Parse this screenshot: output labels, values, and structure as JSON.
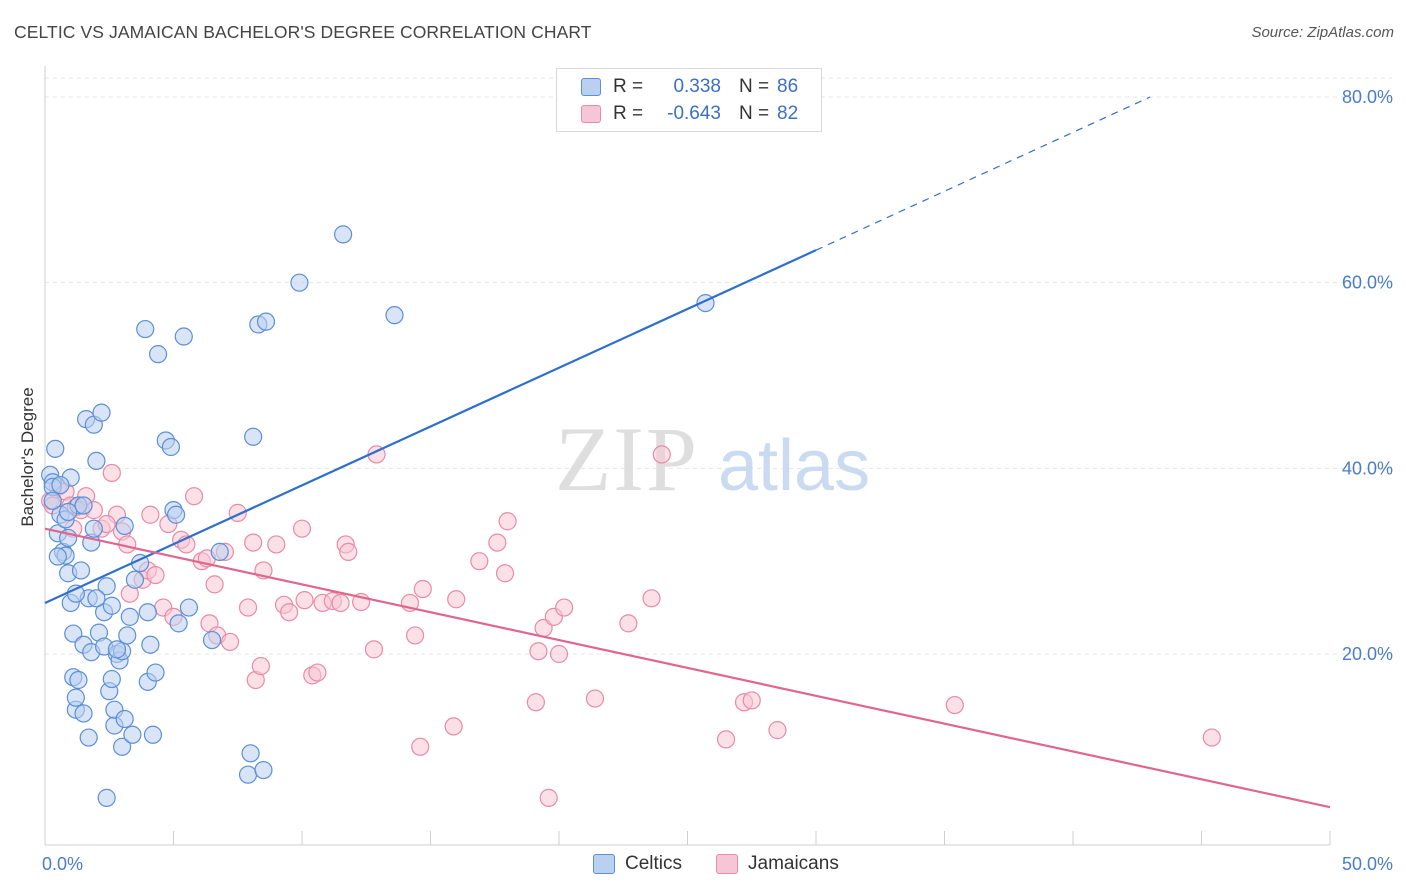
{
  "header": {
    "title": "CELTIC VS JAMAICAN BACHELOR'S DEGREE CORRELATION CHART",
    "source": "Source: ZipAtlas.com"
  },
  "watermark": {
    "zip": "ZIP",
    "atlas": "atlas"
  },
  "legend": {
    "rows": [
      {
        "r_label": "R =",
        "r_value": "0.338",
        "n_label": "N =",
        "n_value": "86",
        "color": "#5b8fd6"
      },
      {
        "r_label": "R =",
        "r_value": "-0.643",
        "n_label": "N =",
        "n_value": "82",
        "color": "#e88aa8"
      }
    ]
  },
  "bottom_legend": {
    "celtics": "Celtics",
    "jamaicans": "Jamaicans"
  },
  "colors": {
    "blue": "#5b8fd6",
    "blue_fill": "#b9d0f0",
    "pink": "#e88aa8",
    "pink_fill": "#f7c6d6",
    "blue_line": "#2f6fcc",
    "pink_line": "#e0668f"
  },
  "chart_data": {
    "type": "scatter",
    "title": "CELTIC VS JAMAICAN BACHELOR'S DEGREE CORRELATION CHART",
    "xlabel": "",
    "ylabel": "Bachelor's Degree",
    "xlim": [
      0,
      50
    ],
    "ylim": [
      0,
      85
    ],
    "x_ticks": [
      "0.0%",
      "50.0%"
    ],
    "y_ticks": [
      {
        "value": 20,
        "label": "20.0%"
      },
      {
        "value": 40,
        "label": "40.0%"
      },
      {
        "value": 60,
        "label": "60.0%"
      },
      {
        "value": 80,
        "label": "80.0%"
      }
    ],
    "grid": true,
    "series": [
      {
        "name": "Celtics",
        "trend": {
          "x": [
            0,
            30
          ],
          "y": [
            25.5,
            63.5
          ],
          "dashed_to": [
            43,
            80
          ]
        },
        "points": [
          [
            0.2,
            39.3
          ],
          [
            0.3,
            38.5
          ],
          [
            0.3,
            38.0
          ],
          [
            0.4,
            42.1
          ],
          [
            0.5,
            33.0
          ],
          [
            0.6,
            35.0
          ],
          [
            0.7,
            31.0
          ],
          [
            0.8,
            30.6
          ],
          [
            0.8,
            34.5
          ],
          [
            0.9,
            32.5
          ],
          [
            0.9,
            28.7
          ],
          [
            1.0,
            25.5
          ],
          [
            1.0,
            39.0
          ],
          [
            1.1,
            22.2
          ],
          [
            1.1,
            17.5
          ],
          [
            1.2,
            14.0
          ],
          [
            1.2,
            15.3
          ],
          [
            1.3,
            17.2
          ],
          [
            1.3,
            36.0
          ],
          [
            1.4,
            29.0
          ],
          [
            1.5,
            21.0
          ],
          [
            1.5,
            13.6
          ],
          [
            1.6,
            45.3
          ],
          [
            1.7,
            26.0
          ],
          [
            1.7,
            11.0
          ],
          [
            1.8,
            20.2
          ],
          [
            1.8,
            32.0
          ],
          [
            1.9,
            33.5
          ],
          [
            1.9,
            44.7
          ],
          [
            2.0,
            40.8
          ],
          [
            2.1,
            22.3
          ],
          [
            2.2,
            46.0
          ],
          [
            2.3,
            20.8
          ],
          [
            2.3,
            24.5
          ],
          [
            2.4,
            4.5
          ],
          [
            2.4,
            27.3
          ],
          [
            2.5,
            16.0
          ],
          [
            2.6,
            25.2
          ],
          [
            2.6,
            17.3
          ],
          [
            2.7,
            12.3
          ],
          [
            2.7,
            14.0
          ],
          [
            2.8,
            20.0
          ],
          [
            2.9,
            19.3
          ],
          [
            3.0,
            20.3
          ],
          [
            3.0,
            10.0
          ],
          [
            3.1,
            13.0
          ],
          [
            3.1,
            33.8
          ],
          [
            3.2,
            22.0
          ],
          [
            3.3,
            24.0
          ],
          [
            3.4,
            11.3
          ],
          [
            3.7,
            29.8
          ],
          [
            3.9,
            55.0
          ],
          [
            4.0,
            17.0
          ],
          [
            4.0,
            24.5
          ],
          [
            4.1,
            21.0
          ],
          [
            4.2,
            11.3
          ],
          [
            4.3,
            18.0
          ],
          [
            4.4,
            52.3
          ],
          [
            4.7,
            43.0
          ],
          [
            4.9,
            42.3
          ],
          [
            5.0,
            35.5
          ],
          [
            5.1,
            35.0
          ],
          [
            5.2,
            23.3
          ],
          [
            5.4,
            54.2
          ],
          [
            5.6,
            25.0
          ],
          [
            6.5,
            21.5
          ],
          [
            6.8,
            31.0
          ],
          [
            7.9,
            7.0
          ],
          [
            8.0,
            9.3
          ],
          [
            8.1,
            43.4
          ],
          [
            8.3,
            55.5
          ],
          [
            8.6,
            55.8
          ],
          [
            8.5,
            7.5
          ],
          [
            9.9,
            60.0
          ],
          [
            11.6,
            65.2
          ],
          [
            13.6,
            56.5
          ],
          [
            25.7,
            57.8
          ],
          [
            0.5,
            30.5
          ],
          [
            1.2,
            26.5
          ],
          [
            2.0,
            26.0
          ],
          [
            0.3,
            36.5
          ],
          [
            0.6,
            38.2
          ],
          [
            1.5,
            36.0
          ],
          [
            0.9,
            35.3
          ],
          [
            2.8,
            20.5
          ],
          [
            3.5,
            28.0
          ]
        ]
      },
      {
        "name": "Jamaicans",
        "trend": {
          "x": [
            0,
            50
          ],
          "y": [
            33.5,
            3.5
          ]
        },
        "points": [
          [
            0.2,
            36.5
          ],
          [
            0.5,
            38.0
          ],
          [
            0.8,
            37.5
          ],
          [
            1.0,
            36.0
          ],
          [
            1.2,
            35.8
          ],
          [
            1.4,
            35.5
          ],
          [
            1.6,
            37.0
          ],
          [
            1.9,
            35.5
          ],
          [
            2.2,
            33.5
          ],
          [
            2.6,
            39.5
          ],
          [
            2.8,
            35.0
          ],
          [
            3.0,
            33.2
          ],
          [
            3.2,
            31.8
          ],
          [
            3.3,
            26.5
          ],
          [
            3.8,
            28.0
          ],
          [
            4.0,
            29.0
          ],
          [
            4.1,
            35.0
          ],
          [
            4.3,
            28.5
          ],
          [
            4.6,
            25.0
          ],
          [
            4.8,
            34.0
          ],
          [
            5.0,
            24.0
          ],
          [
            5.3,
            32.3
          ],
          [
            5.5,
            31.8
          ],
          [
            5.8,
            37.0
          ],
          [
            6.1,
            30.0
          ],
          [
            6.3,
            30.3
          ],
          [
            6.4,
            23.3
          ],
          [
            6.6,
            27.5
          ],
          [
            6.7,
            22.0
          ],
          [
            7.0,
            31.0
          ],
          [
            7.2,
            21.3
          ],
          [
            7.5,
            35.2
          ],
          [
            7.9,
            25.0
          ],
          [
            8.1,
            32.0
          ],
          [
            8.2,
            17.2
          ],
          [
            8.4,
            18.7
          ],
          [
            8.5,
            29.0
          ],
          [
            9.0,
            31.8
          ],
          [
            9.3,
            25.3
          ],
          [
            9.5,
            24.5
          ],
          [
            10.0,
            33.5
          ],
          [
            10.1,
            25.8
          ],
          [
            10.4,
            17.7
          ],
          [
            10.6,
            18.0
          ],
          [
            10.8,
            25.5
          ],
          [
            11.2,
            25.7
          ],
          [
            11.5,
            25.5
          ],
          [
            11.7,
            31.8
          ],
          [
            11.8,
            31.0
          ],
          [
            12.3,
            25.6
          ],
          [
            12.8,
            20.5
          ],
          [
            12.9,
            41.5
          ],
          [
            14.2,
            25.5
          ],
          [
            14.4,
            22.0
          ],
          [
            14.7,
            27.0
          ],
          [
            14.6,
            10.0
          ],
          [
            15.9,
            12.2
          ],
          [
            16.0,
            25.9
          ],
          [
            16.9,
            30.0
          ],
          [
            17.6,
            32.0
          ],
          [
            17.9,
            28.7
          ],
          [
            18.0,
            34.3
          ],
          [
            19.1,
            14.8
          ],
          [
            19.2,
            20.3
          ],
          [
            19.4,
            22.8
          ],
          [
            19.6,
            4.5
          ],
          [
            19.8,
            24.0
          ],
          [
            20.0,
            20.0
          ],
          [
            20.2,
            25.0
          ],
          [
            21.4,
            15.2
          ],
          [
            22.7,
            23.3
          ],
          [
            23.6,
            26.0
          ],
          [
            24.0,
            41.5
          ],
          [
            26.5,
            10.8
          ],
          [
            27.2,
            14.8
          ],
          [
            27.5,
            15.0
          ],
          [
            28.5,
            11.8
          ],
          [
            35.4,
            14.5
          ],
          [
            45.4,
            11.0
          ],
          [
            0.3,
            36.0
          ],
          [
            1.1,
            33.5
          ],
          [
            2.4,
            34.0
          ]
        ]
      }
    ]
  }
}
